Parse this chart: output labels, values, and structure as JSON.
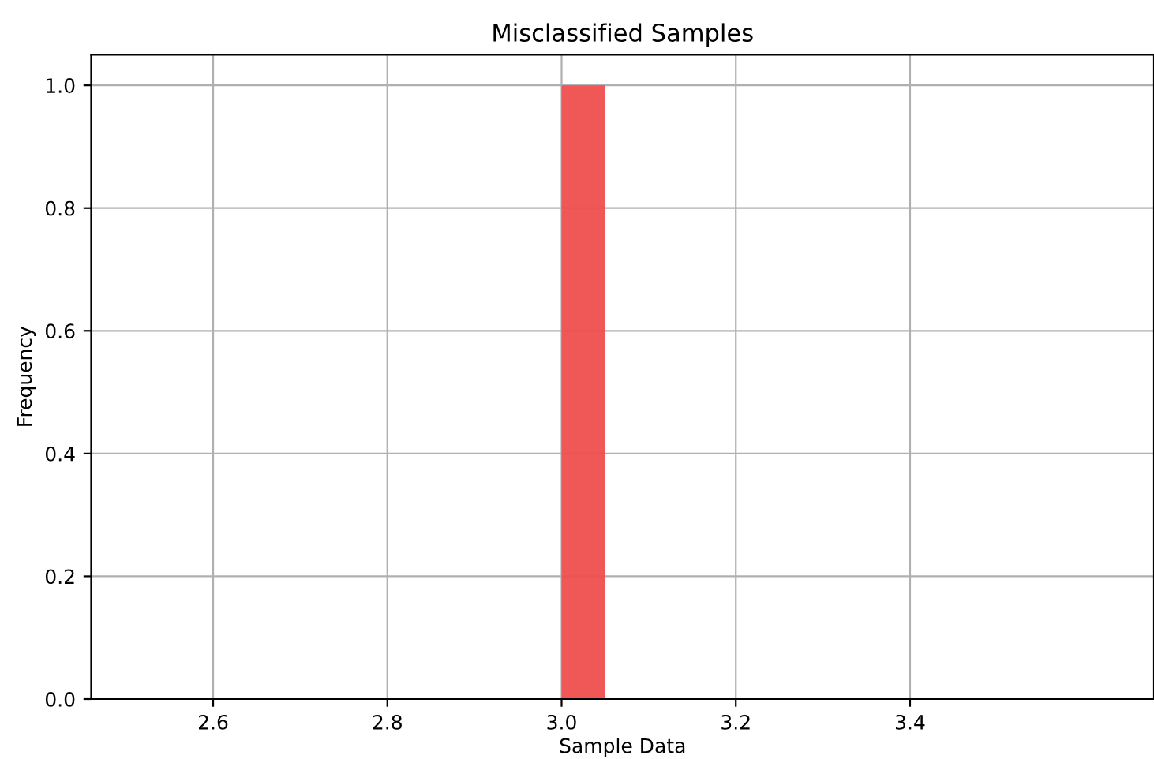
{
  "chart_data": {
    "type": "histogram",
    "title": "Misclassified Samples",
    "xlabel": "Sample Data",
    "ylabel": "Frequency",
    "bins": [
      2.5,
      2.55,
      2.6,
      2.65,
      2.7,
      2.75,
      2.8,
      2.85,
      2.9,
      2.95,
      3.0,
      3.05,
      3.1,
      3.15,
      3.2,
      3.25,
      3.3,
      3.35,
      3.4,
      3.45,
      3.5
    ],
    "values": [
      0,
      0,
      0,
      0,
      0,
      0,
      0,
      0,
      0,
      0,
      1,
      0,
      0,
      0,
      0,
      0,
      0,
      0,
      0,
      0
    ],
    "color": "#ef4f4f",
    "xlim": [
      2.46,
      3.68
    ],
    "ylim": [
      0,
      1.05
    ],
    "xticks": [
      2.6,
      2.8,
      {
        "value": 3,
        "label": "3.0"
      },
      3.2,
      3.4
    ],
    "yticks": [
      {
        "value": 0,
        "label": "0.0"
      },
      0.2,
      0.4,
      0.6,
      0.8,
      {
        "value": 1,
        "label": "1.0"
      }
    ],
    "grid": true
  }
}
